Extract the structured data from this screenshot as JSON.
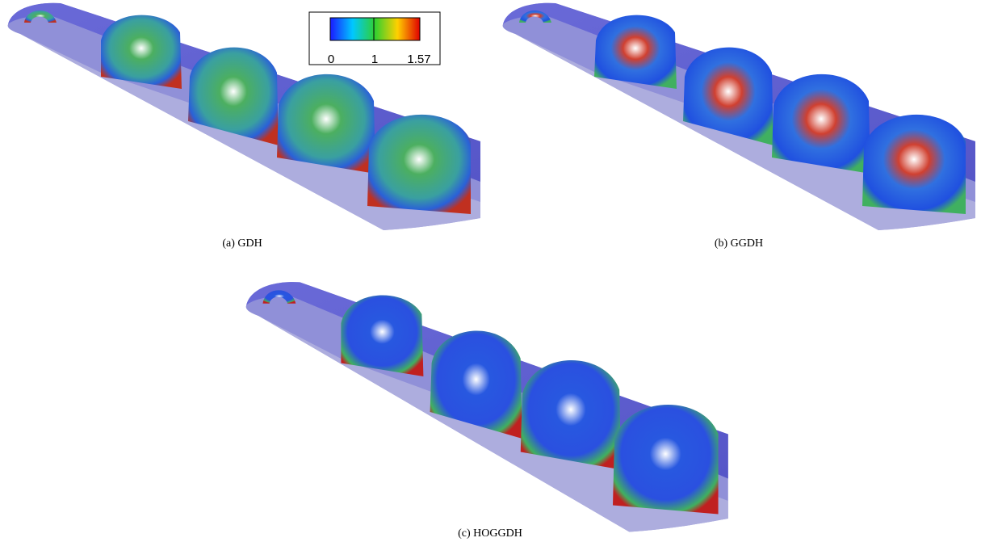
{
  "figure": {
    "colorbar": {
      "ticks": [
        0,
        1,
        1.57
      ]
    },
    "subfigures": [
      {
        "caption": "(a) GDH"
      },
      {
        "caption": "(b) GGDH"
      },
      {
        "caption": "(c) HOGGDH"
      }
    ]
  }
}
